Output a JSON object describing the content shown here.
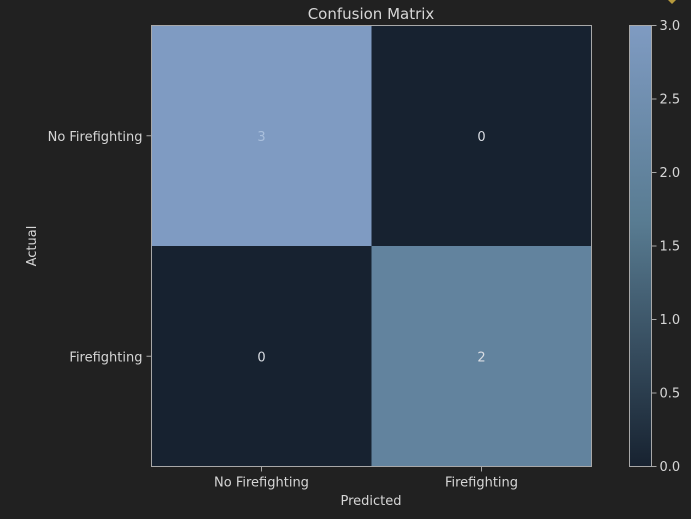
{
  "chart_data": {
    "type": "heatmap",
    "title": "Confusion Matrix",
    "xlabel": "Predicted",
    "ylabel": "Actual",
    "x_categories": [
      "No Firefighting",
      "Firefighting"
    ],
    "y_categories": [
      "No Firefighting",
      "Firefighting"
    ],
    "values": [
      [
        3,
        0
      ],
      [
        0,
        2
      ]
    ],
    "colorbar": {
      "min": 0.0,
      "max": 3.0,
      "ticks": [
        "0.0",
        "0.5",
        "1.0",
        "1.5",
        "2.0",
        "2.5",
        "3.0"
      ],
      "color_low": "#172230",
      "color_high": "#7f9bc2"
    },
    "colors": {
      "background": "#212121",
      "text": "#d6d6d6",
      "axis": "#a8a8a8"
    }
  }
}
